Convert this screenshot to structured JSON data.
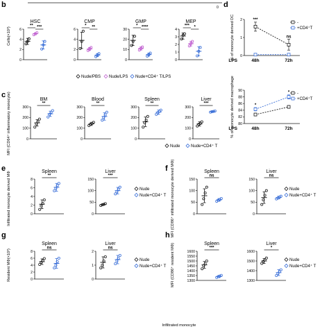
{
  "figure": {
    "bottom_label": "Infiltrated monocyte",
    "top_mid_tick": "0"
  },
  "colors": {
    "nude": "#1a1a1a",
    "cd4": "#3a6fd8",
    "nude_lps": "#c060d0"
  },
  "chart_data": [
    {
      "panel": "b",
      "type": "scatter",
      "ylabel": "Cells(×10³)",
      "legend": [
        "Nude/PBS",
        "Nude/LPS",
        "Nude+CD4⁺ T/LPS"
      ],
      "subplots": [
        {
          "title": "HSC",
          "ylim": [
            0,
            6
          ],
          "yticks": [
            "0",
            "2",
            "4",
            "6"
          ],
          "groups": [
            {
              "mean": 3.6,
              "sd": 0.6,
              "pts": [
                3.1,
                3.6,
                4.1
              ]
            },
            {
              "mean": 5.1,
              "sd": 0.2,
              "pts": [
                4.9,
                5.1,
                5.3
              ]
            },
            {
              "mean": 2.9,
              "sd": 0.8,
              "pts": [
                2.1,
                2.9,
                3.6
              ]
            }
          ],
          "sig": [
            {
              "a": 0,
              "b": 1,
              "text": "**"
            },
            {
              "a": 1,
              "b": 2,
              "text": "***"
            }
          ]
        },
        {
          "title": "CMP",
          "ylim": [
            0,
            6
          ],
          "yticks": [
            "0",
            "2",
            "4",
            "6"
          ],
          "groups": [
            {
              "mean": 3.8,
              "sd": 1.6,
              "pts": [
                2.2,
                3.6,
                5.6
              ]
            },
            {
              "mean": 2.1,
              "sd": 0.3,
              "pts": [
                1.8,
                2.1,
                2.4
              ]
            },
            {
              "mean": 0.9,
              "sd": 0.3,
              "pts": [
                0.6,
                0.9,
                1.2
              ]
            }
          ],
          "sig": [
            {
              "a": 0,
              "b": 1,
              "text": "*"
            },
            {
              "a": 1,
              "b": 2,
              "text": "**"
            }
          ]
        },
        {
          "title": "GMP",
          "ylim": [
            0,
            30
          ],
          "yticks": [
            "0",
            "10",
            "20",
            "30"
          ],
          "groups": [
            {
              "mean": 19,
              "sd": 5,
              "pts": [
                14,
                18,
                23
              ]
            },
            {
              "mean": 11,
              "sd": 1.5,
              "pts": [
                9.5,
                11,
                12.5
              ]
            },
            {
              "mean": 5,
              "sd": 1.5,
              "pts": [
                3.5,
                5,
                6.5
              ]
            }
          ],
          "sig": [
            {
              "a": 0,
              "b": 1,
              "text": "*"
            },
            {
              "a": 1,
              "b": 2,
              "text": "****"
            }
          ]
        },
        {
          "title": "MEP",
          "ylim": [
            0,
            4
          ],
          "yticks": [
            "0",
            "1",
            "2",
            "3",
            "4"
          ],
          "groups": [
            {
              "mean": 3.1,
              "sd": 0.4,
              "pts": [
                2.7,
                3.2,
                3.4
              ]
            },
            {
              "mean": 2.1,
              "sd": 0.3,
              "pts": [
                1.8,
                2.1,
                2.4
              ]
            },
            {
              "mean": 1.1,
              "sd": 0.6,
              "pts": [
                0.5,
                1.1,
                1.6
              ]
            }
          ],
          "sig": [
            {
              "a": 0,
              "b": 1,
              "text": "***"
            },
            {
              "a": 1,
              "b": 2,
              "text": "*"
            }
          ]
        }
      ]
    },
    {
      "panel": "c",
      "type": "scatter",
      "ylabel": "MFI (CD64⁺ inflammatory monocyte)",
      "legend": [
        "Nude",
        "Nude+CD4⁺ T"
      ],
      "subplots": [
        {
          "title": "BM",
          "ylim": [
            0,
            300
          ],
          "yticks": [
            "0",
            "100",
            "200",
            "300"
          ],
          "groups": [
            {
              "mean": 150,
              "sd": 30,
              "pts": [
                110,
                140,
                160,
                185
              ]
            },
            {
              "mean": 235,
              "sd": 25,
              "pts": [
                205,
                230,
                250,
                265
              ]
            }
          ],
          "sig": [
            {
              "a": 0,
              "b": 1,
              "text": "**"
            }
          ]
        },
        {
          "title": "Blood",
          "ylim": [
            0,
            300
          ],
          "yticks": [
            "0",
            "100",
            "200",
            "300"
          ],
          "groups": [
            {
              "mean": 140,
              "sd": 15,
              "pts": [
                125,
                135,
                145,
                155
              ]
            },
            {
              "mean": 210,
              "sd": 35,
              "pts": [
                175,
                200,
                225,
                250
              ]
            }
          ],
          "sig": [
            {
              "a": 0,
              "b": 1,
              "text": "**"
            }
          ]
        },
        {
          "title": "Spleen",
          "ylim": [
            0,
            300
          ],
          "yticks": [
            "0",
            "100",
            "200",
            "300"
          ],
          "groups": [
            {
              "mean": 160,
              "sd": 45,
              "pts": [
                110,
                150,
                175,
                210
              ]
            },
            {
              "mean": 250,
              "sd": 20,
              "pts": [
                230,
                245,
                260,
                270
              ]
            }
          ],
          "sig": [
            {
              "a": 0,
              "b": 1,
              "text": "**"
            }
          ]
        },
        {
          "title": "Liver",
          "ylim": [
            0,
            300
          ],
          "yticks": [
            "0",
            "100",
            "200",
            "300"
          ],
          "groups": [
            {
              "mean": 140,
              "sd": 20,
              "pts": [
                120,
                135,
                145,
                160
              ]
            },
            {
              "mean": 255,
              "sd": 6,
              "pts": [
                250,
                255,
                258,
                262
              ]
            }
          ],
          "sig": [
            {
              "a": 0,
              "b": 1,
              "text": "***"
            }
          ]
        }
      ]
    },
    {
      "panel": "d",
      "type": "line",
      "subplots": [
        {
          "ylabel": "% of monocyte derived DC",
          "ylim": [
            0,
            2
          ],
          "yticks": [
            "0",
            "1",
            "2"
          ],
          "x": [
            "48h",
            "72h"
          ],
          "xlabel": "LPS",
          "series": [
            {
              "name": "-",
              "y": [
                1.6,
                0.6
              ],
              "sd": [
                0.25,
                0.3
              ]
            },
            {
              "name": "+CD4⁺T",
              "y": [
                0.05,
                0.05
              ],
              "sd": [
                0.05,
                0.05
              ]
            }
          ],
          "sig": [
            "***",
            "ns"
          ]
        },
        {
          "ylabel": "% of monocyte derived macrophage",
          "ylim": [
            80,
            90
          ],
          "yticks": [
            "80",
            "82",
            "84",
            "86",
            "88",
            "90"
          ],
          "x": [
            "48h",
            "72h"
          ],
          "xlabel": "LPS",
          "series": [
            {
              "name": "-",
              "y": [
                82.7,
                85.0
              ],
              "sd": [
                0.4,
                0.4
              ]
            },
            {
              "name": "+CD4⁺T",
              "y": [
                84.3,
                88.0
              ],
              "sd": [
                0.5,
                0.6
              ]
            }
          ],
          "sig": [
            "*",
            "*"
          ]
        }
      ]
    },
    {
      "panel": "e",
      "type": "scatter",
      "ylabel": "Infiltrated monocyte derived MΦ",
      "legend": [
        "Nude",
        "Nude+CD4⁺ T"
      ],
      "subplots": [
        {
          "title": "Spleen",
          "ylim": [
            0,
            8
          ],
          "yticks": [
            "0",
            "2",
            "4",
            "6",
            "8"
          ],
          "groups": [
            {
              "mean": 2.2,
              "sd": 1.0,
              "pts": [
                1.0,
                1.8,
                2.4,
                3.2
              ]
            },
            {
              "mean": 6.1,
              "sd": 0.9,
              "pts": [
                5.3,
                5.9,
                6.5,
                7.0
              ]
            }
          ],
          "sig": [
            {
              "a": 0,
              "b": 1,
              "text": "**"
            }
          ]
        },
        {
          "title": "Liver",
          "ylim": [
            0,
            150
          ],
          "yticks": [
            "0",
            "50",
            "100",
            "150"
          ],
          "groups": [
            {
              "mean": 40,
              "sd": 4,
              "pts": [
                36,
                39,
                41,
                44
              ]
            },
            {
              "mean": 100,
              "sd": 14,
              "pts": [
                86,
                95,
                106,
                115
              ]
            }
          ],
          "sig": [
            {
              "a": 0,
              "b": 1,
              "text": "***"
            }
          ]
        }
      ]
    },
    {
      "panel": "f",
      "type": "scatter",
      "ylabel": "MFI (CD86⁺ infiltrated monocyte derived MΦ)",
      "legend": [
        "Nude",
        "Nude+CD4⁺ T"
      ],
      "subplots": [
        {
          "title": "Spleen",
          "ylim": [
            0,
            150
          ],
          "yticks": [
            "0",
            "50",
            "100",
            "150"
          ],
          "groups": [
            {
              "mean": 78,
              "sd": 30,
              "pts": [
                40,
                65,
                90,
                115
              ]
            },
            {
              "mean": 60,
              "sd": 6,
              "pts": [
                54,
                58,
                62,
                66
              ]
            }
          ],
          "sig": [
            {
              "a": 0,
              "b": 1,
              "text": "ns"
            }
          ]
        },
        {
          "title": "Liver",
          "ylim": [
            0,
            150
          ],
          "yticks": [
            "0",
            "50",
            "100",
            "150"
          ],
          "groups": [
            {
              "mean": 70,
              "sd": 25,
              "pts": [
                40,
                60,
                80,
                100
              ]
            },
            {
              "mean": 70,
              "sd": 6,
              "pts": [
                64,
                68,
                72,
                76
              ]
            }
          ],
          "sig": [
            {
              "a": 0,
              "b": 1,
              "text": "ns"
            }
          ]
        }
      ]
    },
    {
      "panel": "g",
      "type": "scatter",
      "ylabel": "Resident MΦ(×10³)",
      "legend": [
        "Nude",
        "Nude+CD4⁺ T"
      ],
      "subplots": [
        {
          "title": "Spleen",
          "ylim": [
            0,
            8
          ],
          "yticks": [
            "0",
            "2",
            "4",
            "6",
            "8"
          ],
          "groups": [
            {
              "mean": 5.0,
              "sd": 0.8,
              "pts": [
                4.2,
                4.8,
                5.3,
                5.9
              ]
            },
            {
              "mean": 4.5,
              "sd": 1.4,
              "pts": [
                3.2,
                4.0,
                5.0,
                6.0
              ]
            }
          ],
          "sig": [
            {
              "a": 0,
              "b": 1,
              "text": "ns"
            }
          ]
        },
        {
          "title": "Liver",
          "ylim": [
            0,
            2
          ],
          "yticks": [
            "0",
            "1",
            "2"
          ],
          "groups": [
            {
              "mean": 1.2,
              "sd": 0.4,
              "pts": [
                0.8,
                1.0,
                1.3,
                1.6
              ]
            },
            {
              "mean": 1.4,
              "sd": 0.3,
              "pts": [
                1.1,
                1.3,
                1.5,
                1.7
              ]
            }
          ],
          "sig": [
            {
              "a": 0,
              "b": 1,
              "text": "ns"
            }
          ]
        }
      ]
    },
    {
      "panel": "h",
      "type": "scatter",
      "ylabel": "MFI (CD86⁺ resident MΦ)",
      "legend": [
        "Nude",
        "Nude+CD4⁺ T"
      ],
      "subplots": [
        {
          "title": "Spleen",
          "ylim": [
            1300,
            1600
          ],
          "yticks": [
            "1300",
            "1350",
            "1400",
            "1450",
            "1500",
            "1550",
            "1600"
          ],
          "groups": [
            {
              "mean": 1460,
              "sd": 35,
              "pts": [
                1420,
                1450,
                1470,
                1500
              ]
            },
            {
              "mean": 1340,
              "sd": 12,
              "pts": [
                1330,
                1338,
                1345,
                1352
              ]
            }
          ],
          "sig": [
            {
              "a": 0,
              "b": 1,
              "text": "***"
            }
          ]
        },
        {
          "title": "Liver",
          "ylim": [
            1300,
            1600
          ],
          "yticks": [
            "1300",
            "1400",
            "1500",
            "1600"
          ],
          "groups": [
            {
              "mean": 1500,
              "sd": 25,
              "pts": [
                1475,
                1495,
                1510,
                1530
              ]
            },
            {
              "mean": 1380,
              "sd": 30,
              "pts": [
                1350,
                1370,
                1390,
                1410
              ]
            }
          ],
          "sig": [
            {
              "a": 0,
              "b": 1,
              "text": "*"
            }
          ]
        }
      ]
    }
  ]
}
